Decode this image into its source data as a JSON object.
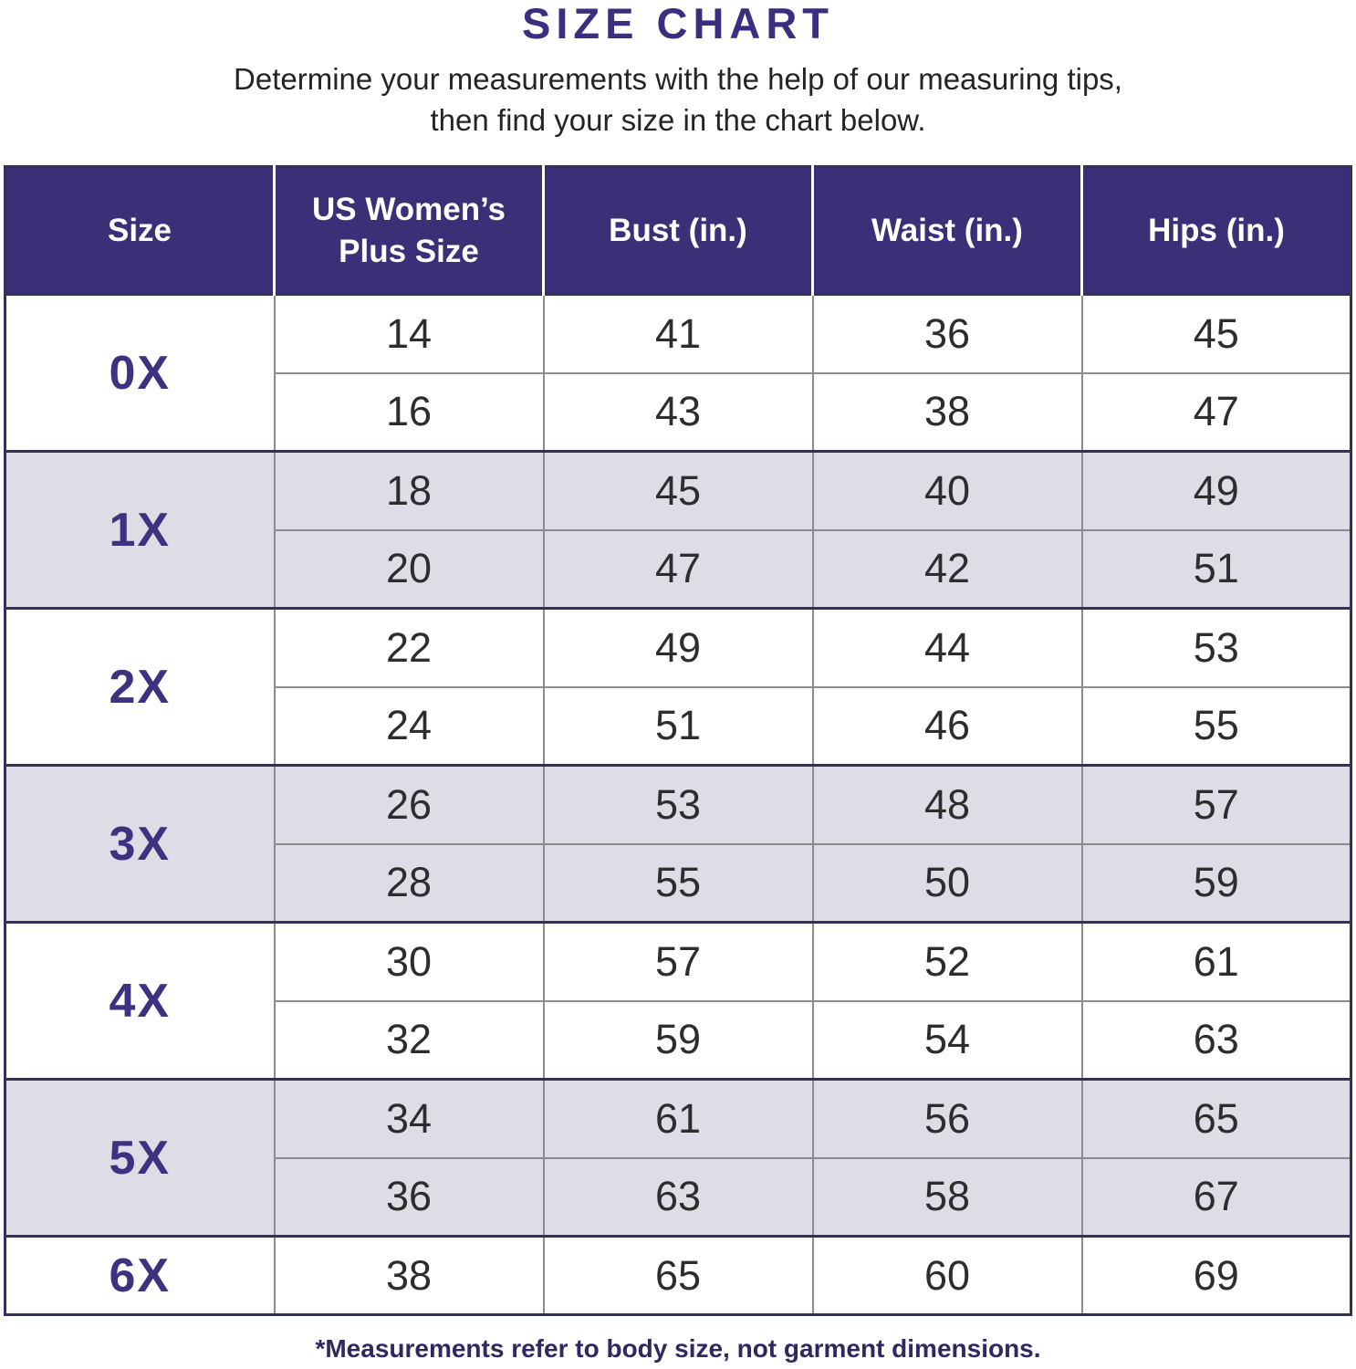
{
  "chart_data": {
    "type": "table",
    "title": "SIZE CHART",
    "subtitle_line1": "Determine your measurements with the help of our measuring tips,",
    "subtitle_line2": "then find your size in the chart below.",
    "footnote": "*Measurements refer to body size, not garment dimensions.",
    "columns": [
      "Size",
      "US Women’s\nPlus Size",
      "Bust (in.)",
      "Waist (in.)",
      "Hips (in.)"
    ],
    "groups": [
      {
        "size": "0X",
        "shaded": false,
        "rows": [
          [
            14,
            41,
            36,
            45
          ],
          [
            16,
            43,
            38,
            47
          ]
        ]
      },
      {
        "size": "1X",
        "shaded": true,
        "rows": [
          [
            18,
            45,
            40,
            49
          ],
          [
            20,
            47,
            42,
            51
          ]
        ]
      },
      {
        "size": "2X",
        "shaded": false,
        "rows": [
          [
            22,
            49,
            44,
            53
          ],
          [
            24,
            51,
            46,
            55
          ]
        ]
      },
      {
        "size": "3X",
        "shaded": true,
        "rows": [
          [
            26,
            53,
            48,
            57
          ],
          [
            28,
            55,
            50,
            59
          ]
        ]
      },
      {
        "size": "4X",
        "shaded": false,
        "rows": [
          [
            30,
            57,
            52,
            61
          ],
          [
            32,
            59,
            54,
            63
          ]
        ]
      },
      {
        "size": "5X",
        "shaded": true,
        "rows": [
          [
            34,
            61,
            56,
            65
          ],
          [
            36,
            63,
            58,
            67
          ]
        ]
      },
      {
        "size": "6X",
        "shaded": false,
        "rows": [
          [
            38,
            65,
            60,
            69
          ]
        ]
      }
    ]
  },
  "colors": {
    "header_bg": "#3B3078",
    "title_text": "#3A2E80",
    "size_label_text": "#3D327F",
    "shaded_row_bg": "#E0DCE6",
    "dark_border": "#33305A",
    "light_border": "#8C8C8C",
    "body_text": "#2D2D2D",
    "footnote_text": "#2E2960",
    "header_text": "#FFFFFF"
  }
}
